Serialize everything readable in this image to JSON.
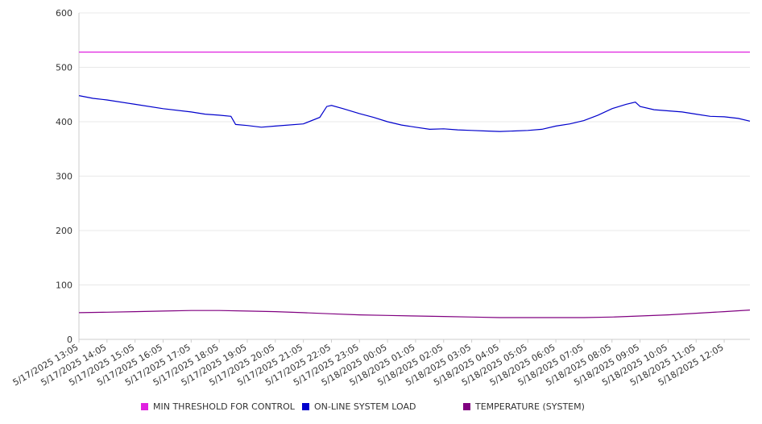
{
  "chart_data": {
    "type": "line",
    "x_ticks": [
      "5/17/2025 13:05",
      "5/17/2025 14:05",
      "5/17/2025 15:05",
      "5/17/2025 16:05",
      "5/17/2025 17:05",
      "5/17/2025 18:05",
      "5/17/2025 19:05",
      "5/17/2025 20:05",
      "5/17/2025 21:05",
      "5/17/2025 22:05",
      "5/17/2025 23:05",
      "5/18/2025 00:05",
      "5/18/2025 01:05",
      "5/18/2025 02:05",
      "5/18/2025 03:05",
      "5/18/2025 04:05",
      "5/18/2025 05:05",
      "5/18/2025 06:05",
      "5/18/2025 07:05",
      "5/18/2025 08:05",
      "5/18/2025 09:05",
      "5/18/2025 10:05",
      "5/18/2025 11:05",
      "5/18/2025 12:05"
    ],
    "x_range": [
      "5/17/2025 13:05",
      "5/18/2025 13:00"
    ],
    "ylim": [
      0,
      600
    ],
    "y_ticks": [
      0,
      100,
      200,
      300,
      400,
      500,
      600
    ],
    "grid": true,
    "legend_position": "bottom",
    "series": [
      {
        "name": "MIN THRESHOLD FOR CONTROL",
        "color": "#e020e0",
        "points": [
          [
            "5/17/2025 13:05",
            528
          ],
          [
            "5/18/2025 13:00",
            528
          ]
        ]
      },
      {
        "name": "ON-LINE SYSTEM LOAD",
        "color": "#0000cc",
        "points": [
          [
            "5/17/2025 13:05",
            448
          ],
          [
            "5/17/2025 13:35",
            443
          ],
          [
            "5/17/2025 14:05",
            440
          ],
          [
            "5/17/2025 15:05",
            432
          ],
          [
            "5/17/2025 16:05",
            424
          ],
          [
            "5/17/2025 17:05",
            418
          ],
          [
            "5/17/2025 17:35",
            414
          ],
          [
            "5/17/2025 18:05",
            412
          ],
          [
            "5/17/2025 18:30",
            410
          ],
          [
            "5/17/2025 18:40",
            395
          ],
          [
            "5/17/2025 19:05",
            393
          ],
          [
            "5/17/2025 19:35",
            390
          ],
          [
            "5/17/2025 20:05",
            392
          ],
          [
            "5/17/2025 21:05",
            396
          ],
          [
            "5/17/2025 21:40",
            408
          ],
          [
            "5/17/2025 21:55",
            428
          ],
          [
            "5/17/2025 22:05",
            430
          ],
          [
            "5/17/2025 22:30",
            424
          ],
          [
            "5/17/2025 23:05",
            415
          ],
          [
            "5/17/2025 23:35",
            408
          ],
          [
            "5/18/2025 00:05",
            400
          ],
          [
            "5/18/2025 00:35",
            394
          ],
          [
            "5/18/2025 01:05",
            390
          ],
          [
            "5/18/2025 01:35",
            386
          ],
          [
            "5/18/2025 02:05",
            387
          ],
          [
            "5/18/2025 02:35",
            385
          ],
          [
            "5/18/2025 03:05",
            384
          ],
          [
            "5/18/2025 03:35",
            383
          ],
          [
            "5/18/2025 04:05",
            382
          ],
          [
            "5/18/2025 04:35",
            383
          ],
          [
            "5/18/2025 05:05",
            384
          ],
          [
            "5/18/2025 05:35",
            386
          ],
          [
            "5/18/2025 06:05",
            392
          ],
          [
            "5/18/2025 06:35",
            396
          ],
          [
            "5/18/2025 07:05",
            402
          ],
          [
            "5/18/2025 07:35",
            412
          ],
          [
            "5/18/2025 08:05",
            424
          ],
          [
            "5/18/2025 08:35",
            432
          ],
          [
            "5/18/2025 08:55",
            436
          ],
          [
            "5/18/2025 09:05",
            428
          ],
          [
            "5/18/2025 09:35",
            422
          ],
          [
            "5/18/2025 10:05",
            420
          ],
          [
            "5/18/2025 10:35",
            418
          ],
          [
            "5/18/2025 11:05",
            414
          ],
          [
            "5/18/2025 11:35",
            410
          ],
          [
            "5/18/2025 12:05",
            409
          ],
          [
            "5/18/2025 12:35",
            406
          ],
          [
            "5/18/2025 13:00",
            401
          ]
        ]
      },
      {
        "name": "TEMPERATURE (SYSTEM)",
        "color": "#800080",
        "points": [
          [
            "5/17/2025 13:05",
            49
          ],
          [
            "5/17/2025 14:05",
            50
          ],
          [
            "5/17/2025 15:05",
            51
          ],
          [
            "5/17/2025 16:05",
            52
          ],
          [
            "5/17/2025 17:05",
            53
          ],
          [
            "5/17/2025 18:05",
            53
          ],
          [
            "5/17/2025 19:05",
            52
          ],
          [
            "5/17/2025 20:05",
            51
          ],
          [
            "5/17/2025 21:05",
            49
          ],
          [
            "5/17/2025 22:05",
            47
          ],
          [
            "5/17/2025 23:05",
            45
          ],
          [
            "5/18/2025 00:05",
            44
          ],
          [
            "5/18/2025 01:05",
            43
          ],
          [
            "5/18/2025 02:05",
            42
          ],
          [
            "5/18/2025 03:05",
            41
          ],
          [
            "5/18/2025 04:05",
            40
          ],
          [
            "5/18/2025 05:05",
            40
          ],
          [
            "5/18/2025 06:05",
            40
          ],
          [
            "5/18/2025 07:05",
            40
          ],
          [
            "5/18/2025 08:05",
            41
          ],
          [
            "5/18/2025 09:05",
            43
          ],
          [
            "5/18/2025 10:05",
            45
          ],
          [
            "5/18/2025 11:05",
            48
          ],
          [
            "5/18/2025 12:05",
            51
          ],
          [
            "5/18/2025 13:00",
            54
          ]
        ]
      }
    ]
  }
}
